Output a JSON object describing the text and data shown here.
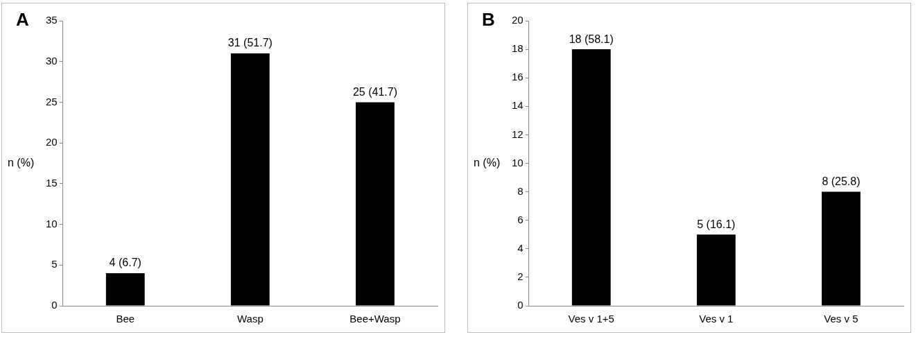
{
  "chart_data": [
    {
      "type": "bar",
      "title": "A",
      "ylabel": "n (%)",
      "categories": [
        "Bee",
        "Wasp",
        "Bee+Wasp"
      ],
      "values": [
        4,
        31,
        25
      ],
      "value_labels": [
        "4 (6.7)",
        "31 (51.7)",
        "25 (41.7)"
      ],
      "color": "#000000",
      "ylim": [
        0,
        35
      ],
      "yticks": [
        0,
        5,
        10,
        15,
        20,
        25,
        30,
        35
      ]
    },
    {
      "type": "bar",
      "title": "B",
      "ylabel": "n (%)",
      "categories": [
        "Ves v 1+5",
        "Ves v 1",
        "Ves v 5"
      ],
      "values": [
        18,
        5,
        8
      ],
      "value_labels": [
        "18 (58.1)",
        "5 (16.1)",
        "8 (25.8)"
      ],
      "color": "#000000",
      "ylim": [
        0,
        20
      ],
      "yticks": [
        0,
        2,
        4,
        6,
        8,
        10,
        12,
        14,
        16,
        18,
        20
      ]
    }
  ]
}
